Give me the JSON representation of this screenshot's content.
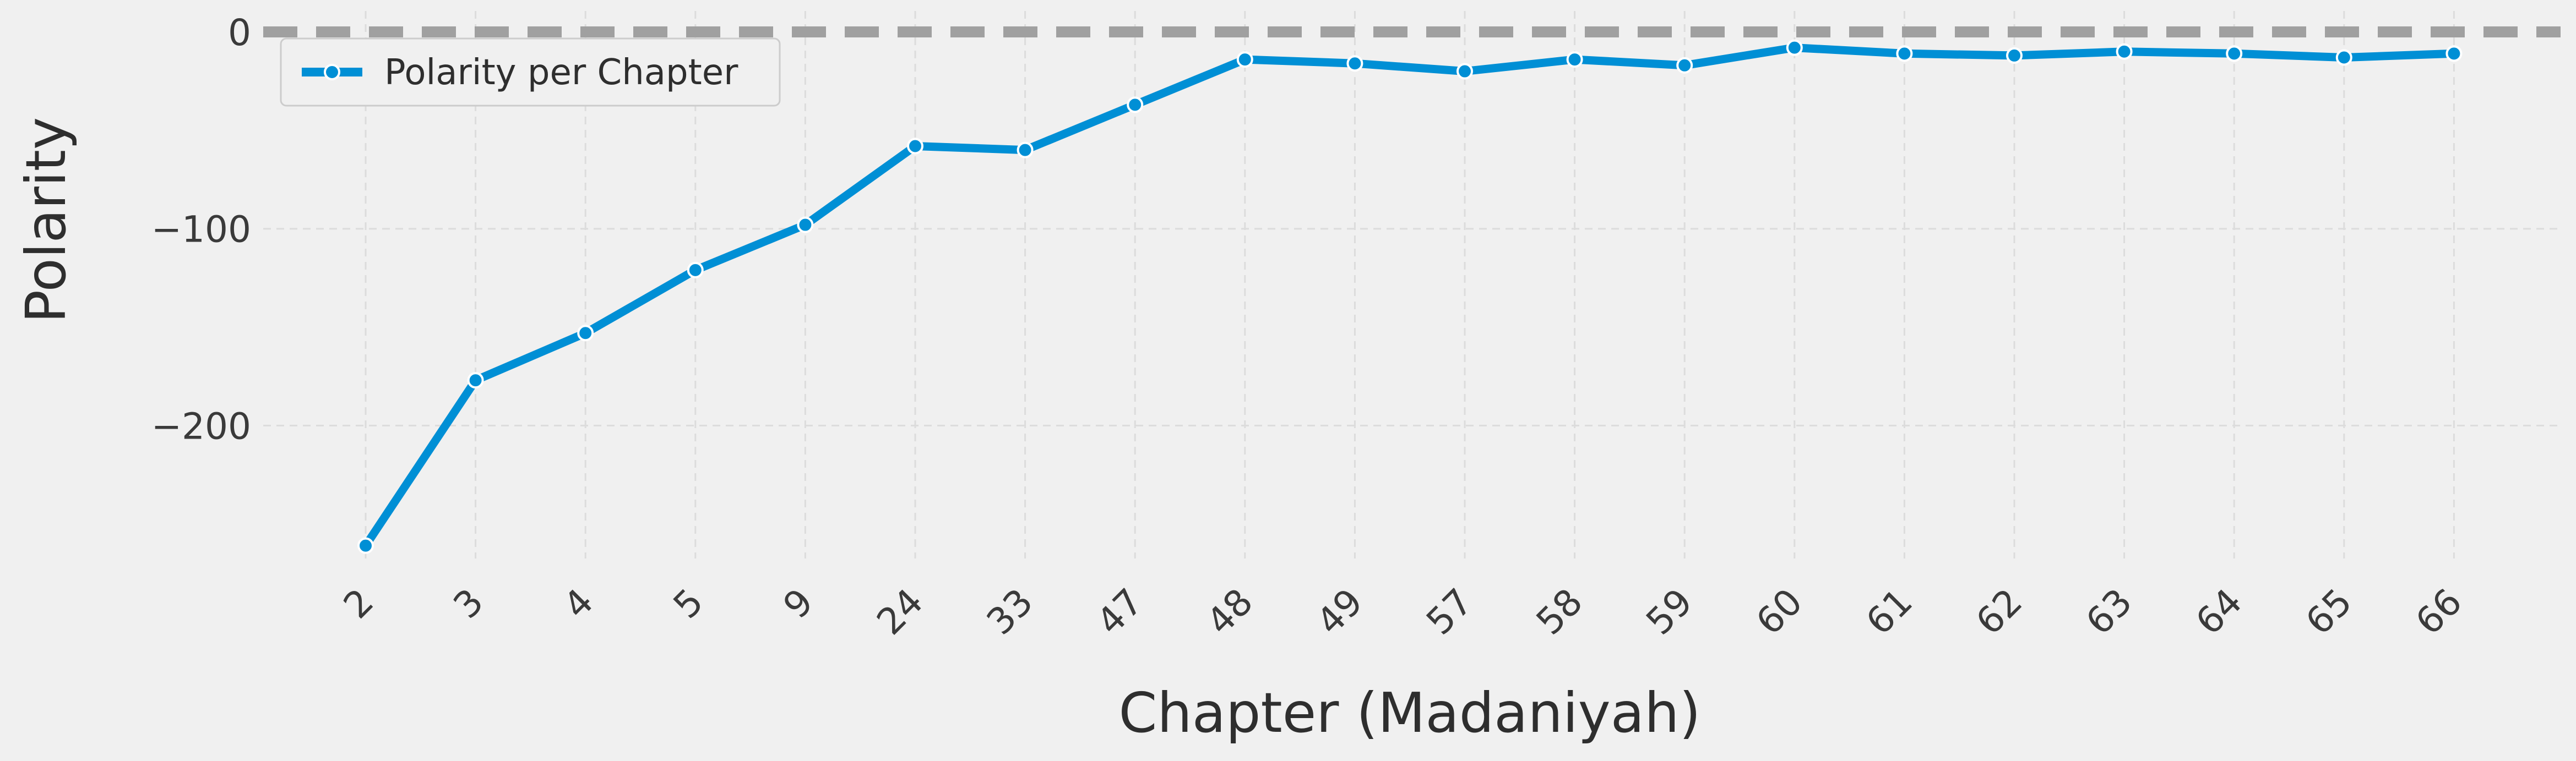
{
  "chart_data": {
    "type": "line",
    "title": "",
    "xlabel": "Chapter (Madaniyah)",
    "ylabel": "Polarity",
    "categories": [
      "2",
      "3",
      "4",
      "5",
      "9",
      "24",
      "33",
      "47",
      "48",
      "49",
      "57",
      "58",
      "59",
      "60",
      "61",
      "62",
      "63",
      "64",
      "65",
      "66"
    ],
    "series": [
      {
        "name": "Polarity per Chapter",
        "values": [
          -261,
          -177,
          -153,
          -121,
          -98,
          -58,
          -60,
          -37,
          -14,
          -16,
          -20,
          -14,
          -17,
          -8,
          -11,
          -12,
          -10,
          -11,
          -13,
          -11
        ],
        "color": "#008fd5"
      }
    ],
    "yticks": [
      0,
      -100,
      -200
    ],
    "ytick_labels": [
      "0",
      "−100",
      "−200"
    ],
    "ylim": [
      -272,
      0
    ],
    "reference_line": {
      "y": 0,
      "style": "dashed",
      "color": "#a0a0a0"
    },
    "grid": true,
    "legend_position": "upper-left"
  }
}
